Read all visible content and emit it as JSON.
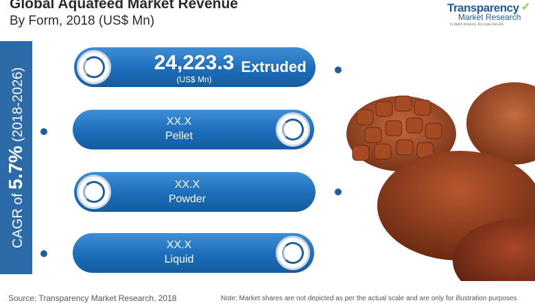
{
  "header": {
    "title": "Global Aquafeed Market Revenue",
    "subtitle": "By Form, 2018 (US$ Mn)"
  },
  "logo": {
    "name": "Transparency",
    "sub": "Market Research",
    "tagline": "In-depth Analysis. Accurate Results"
  },
  "cagr": {
    "prefix": "CAGR of",
    "value": "5.7%",
    "period": "(2018-2026)"
  },
  "chart_data": {
    "type": "bar",
    "title": "Global Aquafeed Market Revenue",
    "subtitle": "By Form, 2018 (US$ Mn)",
    "categories": [
      "Extruded",
      "Pellet",
      "Powder",
      "Liquid"
    ],
    "values": [
      24223.3,
      null,
      null,
      null
    ],
    "value_labels": [
      "24,223.3",
      "XX.X",
      "XX.X",
      "XX.X"
    ],
    "unit_label": "(US$ Mn)"
  },
  "segments": [
    {
      "label": "Extruded",
      "value": "24,223.3",
      "unit": "(US$ Mn)"
    },
    {
      "label": "Pellet",
      "value": "XX.X"
    },
    {
      "label": "Powder",
      "value": "XX.X"
    },
    {
      "label": "Liquid",
      "value": "XX.X"
    }
  ],
  "footer": {
    "source": "Source: Transparency Market Research, 2018",
    "note": "Note: Market shares are not depicted as per the actual scale and are only for illustration purposes"
  },
  "colors": {
    "accent": "#1f6fbd",
    "band": "#2d6aa8",
    "dot": "#1e5f9e"
  }
}
